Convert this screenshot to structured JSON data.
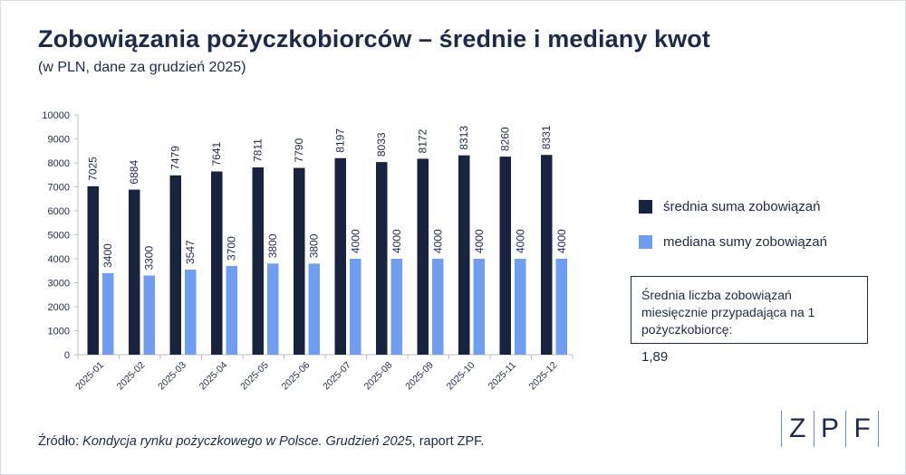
{
  "header": {
    "title": "Zobowiązania pożyczkobiorców – średnie i mediany kwot",
    "subtitle": "(w PLN, dane za grudzień 2025)"
  },
  "colors": {
    "dark_navy": "#17233f",
    "light_blue": "#6f9ef0",
    "text": "#1b2a4a",
    "logo_accent": "#5b8fd8"
  },
  "chart_data": {
    "type": "bar",
    "categories": [
      "2025-01",
      "2025-02",
      "2025-03",
      "2025-04",
      "2025-05",
      "2025-06",
      "2025-07",
      "2025-08",
      "2025-09",
      "2025-10",
      "2025-11",
      "2025-12"
    ],
    "series": [
      {
        "name": "średnia suma zobowiązań",
        "color": "#17233f",
        "values": [
          7025,
          6884,
          7479,
          7641,
          7811,
          7790,
          8197,
          8033,
          8172,
          8313,
          8260,
          8331
        ]
      },
      {
        "name": "mediana sumy zobowiązań",
        "color": "#6f9ef0",
        "values": [
          3400,
          3300,
          3547,
          3700,
          3800,
          3800,
          4000,
          4000,
          4000,
          4000,
          4000,
          4000
        ]
      }
    ],
    "yticks": [
      "0",
      "1000",
      "2000",
      "3000",
      "4000",
      "5000",
      "6000",
      "7000",
      "8000",
      "9000",
      "10000"
    ],
    "ylim": [
      0,
      10000
    ],
    "legend_position": "right",
    "grid": false
  },
  "info_box": {
    "label": "Średnia liczba zobowiązań miesięcznie przypadająca na 1 pożyczkobiorcę:",
    "value": "1,89"
  },
  "source": {
    "prefix": "Źródło: ",
    "title": "Kondycja rynku pożyczkowego w Polsce. Grudzień 2025",
    "suffix": ", raport ZPF."
  },
  "logo": {
    "letters": [
      "Z",
      "P",
      "F"
    ]
  }
}
